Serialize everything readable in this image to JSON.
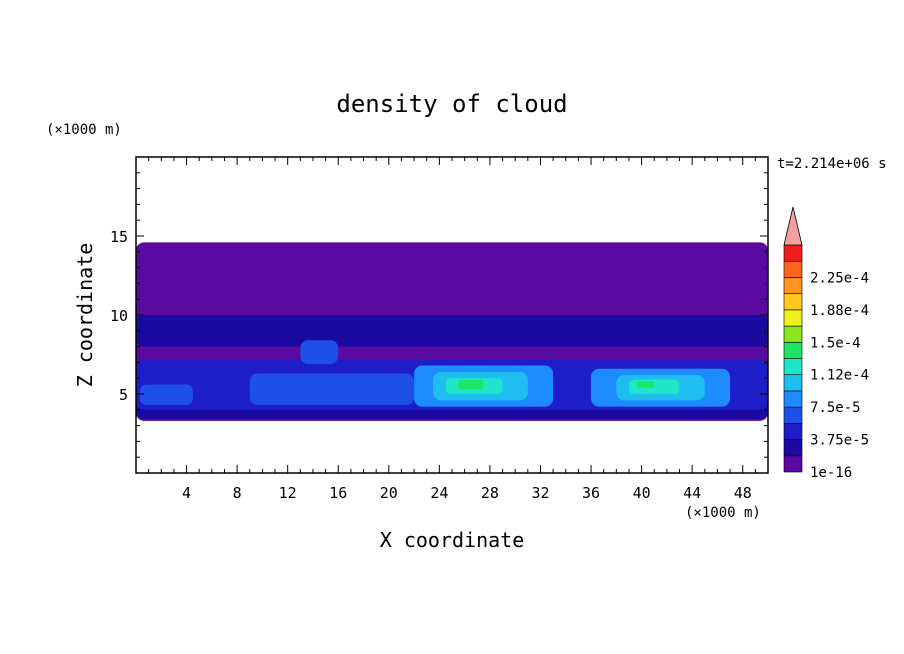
{
  "chart_data": {
    "type": "heatmap",
    "title": "density of cloud",
    "xlabel": "X coordinate",
    "ylabel": "Z coordinate",
    "x_unit": "(×1000 m)",
    "y_unit": "(×1000 m)",
    "time_label": "t=2.214e+06 s",
    "xlim": [
      0,
      50
    ],
    "ylim": [
      0,
      20
    ],
    "x_ticks": [
      4,
      8,
      12,
      16,
      20,
      24,
      28,
      32,
      36,
      40,
      44,
      48
    ],
    "y_ticks": [
      5,
      10,
      15
    ],
    "colorbar": {
      "levels": [
        {
          "value": 1e-16,
          "color": "#5a0aa0"
        },
        {
          "value": 1.875e-05,
          "color": "#1a0aa0"
        },
        {
          "value": 3.75e-05,
          "color": "#1e1ec8"
        },
        {
          "value": 5.625e-05,
          "color": "#1e50e6"
        },
        {
          "value": 7.5e-05,
          "color": "#1e8cff"
        },
        {
          "value": 9.375e-05,
          "color": "#1ebef0"
        },
        {
          "value": 0.000112,
          "color": "#1ee6c8"
        },
        {
          "value": 0.000131,
          "color": "#1ee664"
        },
        {
          "value": 0.00015,
          "color": "#8ce61e"
        },
        {
          "value": 0.000169,
          "color": "#f0f01e"
        },
        {
          "value": 0.000188,
          "color": "#ffc81e"
        },
        {
          "value": 0.000206,
          "color": "#ff961e"
        },
        {
          "value": 0.000225,
          "color": "#ff641e"
        },
        {
          "value": 0.000244,
          "color": "#f01e1e"
        }
      ],
      "overflow_color": "#f5a0a0",
      "labels": [
        "1e-16",
        "3.75e-5",
        "7.5e-5",
        "1.12e-4",
        "1.5e-4",
        "1.88e-4",
        "2.25e-4"
      ]
    },
    "regions": [
      {
        "name": "cloud-layer",
        "x": [
          0,
          50
        ],
        "z": [
          3.3,
          14.6
        ],
        "level": 0
      },
      {
        "name": "upper-band",
        "x": [
          0,
          50
        ],
        "z": [
          8.0,
          10.0
        ],
        "level": 1
      },
      {
        "name": "low-edge-band",
        "x": [
          0,
          50
        ],
        "z": [
          3.4,
          6.2
        ],
        "level": 1
      },
      {
        "name": "dense-layer",
        "x": [
          0,
          50
        ],
        "z": [
          4.0,
          7.2
        ],
        "level": 2
      },
      {
        "name": "patch-14",
        "x": [
          13,
          16
        ],
        "z": [
          6.9,
          8.4
        ],
        "level": 3
      },
      {
        "name": "core-a",
        "x": [
          9,
          22
        ],
        "z": [
          4.3,
          6.3
        ],
        "level": 3
      },
      {
        "name": "core-b",
        "x": [
          22,
          33
        ],
        "z": [
          4.2,
          6.8
        ],
        "level": 4
      },
      {
        "name": "core-c",
        "x": [
          36,
          47
        ],
        "z": [
          4.2,
          6.6
        ],
        "level": 4
      },
      {
        "name": "core-b-inner",
        "x": [
          23.5,
          31
        ],
        "z": [
          4.6,
          6.4
        ],
        "level": 5
      },
      {
        "name": "core-c-inner",
        "x": [
          38,
          45
        ],
        "z": [
          4.6,
          6.2
        ],
        "level": 5
      },
      {
        "name": "core-b-hot",
        "x": [
          24.5,
          29
        ],
        "z": [
          5.0,
          6.0
        ],
        "level": 6
      },
      {
        "name": "core-c-hot",
        "x": [
          39,
          43
        ],
        "z": [
          5.0,
          5.9
        ],
        "level": 6
      },
      {
        "name": "peak-b",
        "x": [
          25.5,
          27.5
        ],
        "z": [
          5.3,
          5.9
        ],
        "level": 7
      },
      {
        "name": "peak-c",
        "x": [
          39.6,
          41
        ],
        "z": [
          5.4,
          5.8
        ],
        "level": 7
      },
      {
        "name": "left-core",
        "x": [
          0.3,
          4.5
        ],
        "z": [
          4.3,
          5.6
        ],
        "level": 3
      }
    ]
  }
}
